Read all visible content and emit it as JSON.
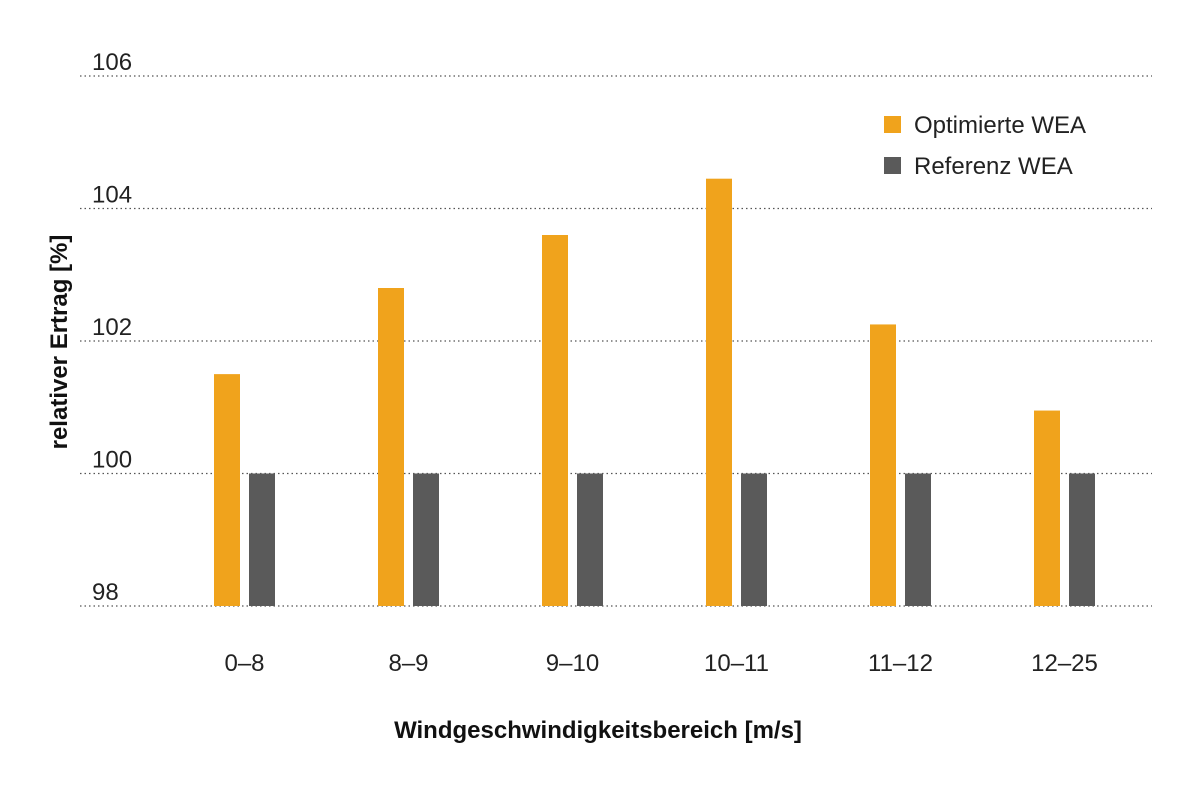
{
  "chart_data": {
    "type": "bar",
    "categories": [
      "0–8",
      "8–9",
      "9–10",
      "10–11",
      "11–12",
      "12–25"
    ],
    "series": [
      {
        "name": "Optimierte WEA",
        "color": "#f0a31c",
        "values": [
          101.5,
          102.8,
          103.6,
          104.45,
          102.25,
          100.95
        ]
      },
      {
        "name": "Referenz WEA",
        "color": "#5a5a5a",
        "values": [
          100,
          100,
          100,
          100,
          100,
          100
        ]
      }
    ],
    "title": "",
    "xlabel": "Windgeschwindigkeitsbereich [m/s]",
    "ylabel": "relativer Ertrag [%]",
    "ylim": [
      98,
      106
    ],
    "yticks": [
      98,
      100,
      102,
      104,
      106
    ],
    "grid": true,
    "legend": "top-right"
  }
}
